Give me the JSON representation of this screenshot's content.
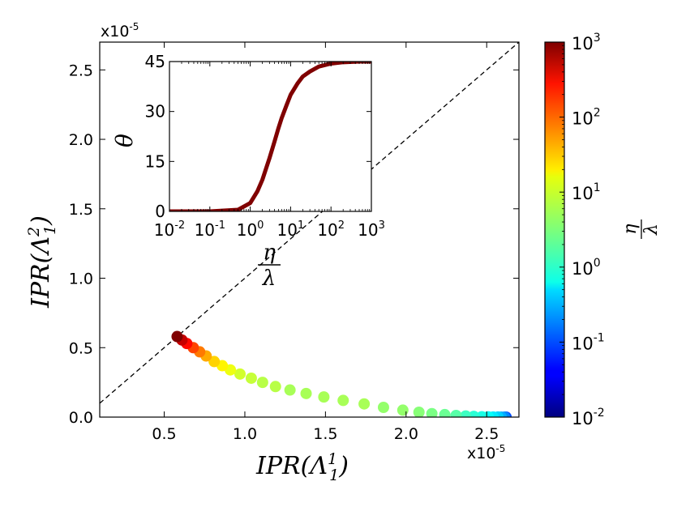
{
  "chart_data": [
    {
      "id": "main",
      "type": "scatter",
      "xlabel_text": "IPR(Λ",
      "xlabel_sub": "1",
      "xlabel_sup": "1",
      "xlabel_close": ")",
      "ylabel_text": "IPR(Λ",
      "ylabel_sub": "1",
      "ylabel_sup": "2",
      "ylabel_close": ")",
      "x_multiplier": "x10",
      "y_multiplier": "x10",
      "multiplier_exp": "-5",
      "xlim": [
        0.1,
        2.7
      ],
      "ylim": [
        0.0,
        2.7
      ],
      "xticks": [
        0.5,
        1.0,
        1.5,
        2.0,
        2.5
      ],
      "xtick_labels": [
        "0.5",
        "1.0",
        "1.5",
        "2.0",
        "2.5"
      ],
      "yticks": [
        0.0,
        0.5,
        1.0,
        1.5,
        2.0,
        2.5
      ],
      "ytick_labels": [
        "0.0",
        "0.5",
        "1.0",
        "1.5",
        "2.0",
        "2.5"
      ],
      "reference_line": {
        "style": "dashed",
        "slope": 1,
        "intercept": 0
      },
      "points": [
        {
          "x": 0.58,
          "y": 0.58,
          "c": 1000
        },
        {
          "x": 0.61,
          "y": 0.555,
          "c": 450
        },
        {
          "x": 0.64,
          "y": 0.53,
          "c": 220
        },
        {
          "x": 0.68,
          "y": 0.5,
          "c": 110
        },
        {
          "x": 0.72,
          "y": 0.47,
          "c": 60
        },
        {
          "x": 0.76,
          "y": 0.44,
          "c": 35
        },
        {
          "x": 0.81,
          "y": 0.4,
          "c": 22
        },
        {
          "x": 0.86,
          "y": 0.37,
          "c": 15
        },
        {
          "x": 0.91,
          "y": 0.34,
          "c": 11
        },
        {
          "x": 0.97,
          "y": 0.31,
          "c": 8
        },
        {
          "x": 1.04,
          "y": 0.28,
          "c": 7
        },
        {
          "x": 1.11,
          "y": 0.25,
          "c": 6
        },
        {
          "x": 1.19,
          "y": 0.22,
          "c": 6
        },
        {
          "x": 1.28,
          "y": 0.195,
          "c": 5
        },
        {
          "x": 1.38,
          "y": 0.17,
          "c": 5
        },
        {
          "x": 1.49,
          "y": 0.145,
          "c": 5
        },
        {
          "x": 1.61,
          "y": 0.12,
          "c": 5
        },
        {
          "x": 1.74,
          "y": 0.095,
          "c": 5
        },
        {
          "x": 1.86,
          "y": 0.07,
          "c": 4
        },
        {
          "x": 1.98,
          "y": 0.05,
          "c": 4
        },
        {
          "x": 2.08,
          "y": 0.035,
          "c": 3.5
        },
        {
          "x": 2.16,
          "y": 0.025,
          "c": 3
        },
        {
          "x": 2.24,
          "y": 0.018,
          "c": 2.5
        },
        {
          "x": 2.31,
          "y": 0.012,
          "c": 2
        },
        {
          "x": 2.37,
          "y": 0.008,
          "c": 1.5
        },
        {
          "x": 2.42,
          "y": 0.005,
          "c": 1.2
        },
        {
          "x": 2.47,
          "y": 0.003,
          "c": 1
        },
        {
          "x": 2.51,
          "y": 0.002,
          "c": 0.8
        },
        {
          "x": 2.54,
          "y": 0.001,
          "c": 0.6
        },
        {
          "x": 2.57,
          "y": 0.0005,
          "c": 0.45
        },
        {
          "x": 2.59,
          "y": 0.0,
          "c": 0.3
        },
        {
          "x": 2.61,
          "y": 0.0,
          "c": 0.2
        },
        {
          "x": 2.62,
          "y": 0.0,
          "c": 0.1
        }
      ]
    },
    {
      "id": "inset",
      "type": "line",
      "xscale": "log",
      "xlim": [
        0.01,
        1000
      ],
      "ylim": [
        0,
        45
      ],
      "xtick_base": "10",
      "xtick_exponents": [
        "-2",
        "-1",
        "0",
        "1",
        "2",
        "3"
      ],
      "yticks": [
        0,
        15,
        30,
        45
      ],
      "ytick_labels": [
        "0",
        "15",
        "30",
        "45"
      ],
      "ylabel": "θ",
      "xlabel_num": "η",
      "xlabel_den": "λ",
      "line_color": "#800000",
      "x": [
        0.01,
        0.1,
        0.5,
        1,
        1.5,
        2,
        3,
        4,
        5,
        6,
        8,
        10,
        15,
        20,
        30,
        50,
        100,
        200,
        500,
        1000
      ],
      "y": [
        0,
        0,
        0.5,
        2.5,
        6,
        9.5,
        16,
        21,
        25,
        28,
        32,
        35,
        38.5,
        40.5,
        42,
        43.5,
        44.4,
        44.8,
        45,
        45
      ]
    },
    {
      "id": "colorbar",
      "type": "colorbar",
      "scale": "log",
      "range": [
        0.01,
        1000
      ],
      "tick_base": "10",
      "tick_exponents": [
        "-2",
        "-1",
        "0",
        "1",
        "2",
        "3"
      ],
      "label_num": "η",
      "label_den": "λ",
      "colormap": "jet"
    }
  ]
}
